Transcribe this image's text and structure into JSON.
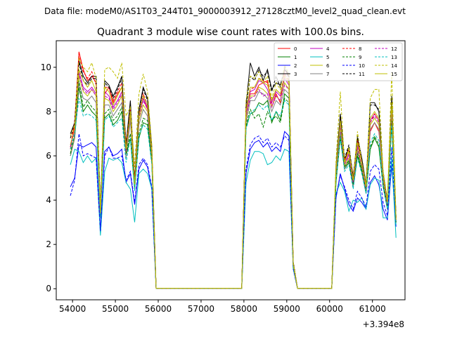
{
  "header": {
    "datafile": "Data file: modeM0/AS1T03_244T01_9000003912_27128cztM0_level2_quad_clean.evt"
  },
  "chart_data": {
    "type": "line",
    "title": "Quadrant 3 module wise count rates with 100.0s bins.",
    "xlabel": "",
    "ylabel": "",
    "x_offset_label": "+3.394e8",
    "xlim": [
      53620,
      61760
    ],
    "ylim": [
      -0.5,
      11.2
    ],
    "xticks": [
      54000,
      55000,
      56000,
      57000,
      58000,
      59000,
      60000,
      61000
    ],
    "yticks": [
      0,
      2,
      4,
      6,
      8,
      10
    ],
    "grid": false,
    "legend_position": "top-right",
    "x": [
      53950,
      54050,
      54150,
      54250,
      54350,
      54450,
      54550,
      54650,
      54750,
      54850,
      54950,
      55050,
      55150,
      55250,
      55350,
      55450,
      55550,
      55650,
      55750,
      55850,
      55950,
      56050,
      57950,
      58050,
      58150,
      58250,
      58350,
      58450,
      58550,
      58650,
      58750,
      58850,
      58950,
      59050,
      59150,
      59250,
      60050,
      60150,
      60250,
      60350,
      60450,
      60550,
      60650,
      60750,
      60850,
      60950,
      61050,
      61150,
      61250,
      61350,
      61450,
      61550
    ],
    "series": [
      {
        "name": "0",
        "color": "#ff0000",
        "dash": false,
        "values": [
          6.3,
          7.4,
          10.7,
          9.9,
          9.4,
          9.6,
          9.3,
          3.6,
          8.8,
          9.1,
          8.4,
          8.8,
          9.1,
          6.6,
          7.9,
          4.9,
          7.8,
          8.6,
          8.1,
          6.2,
          0.02,
          0.02,
          0.02,
          8.2,
          8.8,
          8.8,
          9.2,
          9.3,
          9.4,
          8.2,
          8.8,
          8.4,
          9.9,
          9.6,
          1.2,
          0.02,
          0.02,
          5.3,
          7.6,
          5.8,
          6.3,
          5.1,
          6.7,
          5.8,
          4.6,
          7.1,
          7.5,
          7.1,
          5.1,
          3.9,
          8.3,
          3.2
        ]
      },
      {
        "name": "1",
        "color": "#008000",
        "dash": false,
        "values": [
          6.0,
          6.8,
          9.1,
          8.0,
          8.3,
          8.0,
          7.8,
          3.3,
          7.7,
          7.9,
          7.4,
          7.6,
          8.0,
          6.0,
          6.8,
          4.5,
          6.8,
          7.5,
          7.4,
          5.7,
          0.02,
          0.02,
          0.02,
          7.3,
          7.9,
          8.0,
          8.4,
          8.3,
          8.5,
          7.5,
          8.0,
          7.6,
          8.8,
          8.6,
          1.1,
          0.02,
          0.02,
          4.8,
          6.8,
          5.4,
          5.7,
          4.6,
          6.0,
          5.3,
          4.3,
          6.3,
          6.8,
          6.4,
          4.6,
          3.6,
          7.5,
          3.0
        ]
      },
      {
        "name": "2",
        "color": "#0000ff",
        "dash": false,
        "values": [
          4.6,
          5.0,
          6.5,
          6.4,
          6.5,
          6.6,
          6.4,
          2.6,
          6.2,
          6.4,
          6.0,
          6.1,
          6.3,
          4.8,
          5.2,
          3.8,
          5.4,
          5.8,
          5.5,
          4.5,
          0.02,
          0.02,
          0.02,
          5.2,
          6.3,
          6.6,
          6.7,
          6.4,
          6.6,
          6.2,
          6.4,
          6.2,
          7.1,
          6.9,
          0.9,
          0.02,
          0.02,
          4.1,
          5.2,
          4.5,
          3.8,
          3.5,
          4.1,
          3.9,
          3.6,
          4.8,
          5.1,
          4.7,
          3.6,
          3.1,
          5.6,
          2.8
        ]
      },
      {
        "name": "3",
        "color": "#000000",
        "dash": false,
        "values": [
          7.0,
          7.5,
          10.3,
          9.6,
          9.3,
          9.6,
          9.6,
          3.6,
          9.4,
          9.2,
          8.7,
          9.1,
          9.6,
          6.5,
          8.5,
          4.9,
          8.1,
          9.1,
          8.6,
          6.4,
          0.02,
          0.02,
          0.02,
          8.3,
          10.2,
          9.6,
          10.0,
          9.4,
          9.9,
          9.0,
          9.3,
          9.2,
          9.9,
          9.7,
          1.2,
          0.02,
          0.02,
          5.5,
          7.9,
          5.8,
          6.4,
          5.0,
          6.8,
          5.9,
          4.7,
          8.4,
          8.4,
          8.0,
          5.2,
          4.0,
          8.6,
          3.2
        ]
      },
      {
        "name": "4",
        "color": "#bf00bf",
        "dash": false,
        "values": [
          6.5,
          7.1,
          9.8,
          9.1,
          8.9,
          9.1,
          8.8,
          3.4,
          8.9,
          8.7,
          8.2,
          8.5,
          8.9,
          6.2,
          8.0,
          4.7,
          7.8,
          8.6,
          8.2,
          6.1,
          0.02,
          0.02,
          0.02,
          7.9,
          8.9,
          9.0,
          9.4,
          9.3,
          9.0,
          8.4,
          8.9,
          8.7,
          9.5,
          9.2,
          1.1,
          0.02,
          0.02,
          5.3,
          7.5,
          5.6,
          6.1,
          4.8,
          6.5,
          5.7,
          4.5,
          7.6,
          7.9,
          7.6,
          5.0,
          3.8,
          8.2,
          3.1
        ]
      },
      {
        "name": "5",
        "color": "#00bfbf",
        "dash": false,
        "values": [
          5.6,
          6.3,
          6.2,
          5.7,
          6.0,
          5.7,
          5.9,
          2.4,
          5.3,
          5.9,
          5.8,
          5.9,
          5.7,
          4.8,
          4.5,
          3.0,
          5.2,
          5.4,
          5.2,
          4.5,
          0.02,
          0.02,
          0.02,
          4.8,
          5.8,
          6.2,
          6.2,
          6.1,
          5.6,
          5.7,
          6.0,
          5.8,
          6.3,
          6.2,
          0.9,
          0.02,
          0.02,
          4.3,
          4.8,
          4.4,
          3.5,
          4.0,
          3.9,
          4.1,
          3.6,
          4.7,
          5.0,
          4.9,
          3.2,
          3.2,
          5.9,
          2.3
        ]
      },
      {
        "name": "6",
        "color": "#bfbf00",
        "dash": false,
        "values": [
          6.1,
          6.9,
          9.6,
          8.9,
          8.7,
          9.0,
          8.7,
          3.3,
          8.6,
          8.5,
          8.0,
          8.3,
          8.7,
          6.1,
          7.8,
          4.6,
          7.6,
          8.3,
          8.0,
          6.0,
          0.02,
          0.02,
          0.02,
          7.7,
          8.7,
          8.7,
          9.1,
          9.0,
          8.8,
          8.2,
          8.7,
          8.5,
          9.3,
          9.0,
          1.1,
          0.02,
          0.02,
          5.2,
          7.3,
          5.5,
          5.9,
          4.7,
          6.3,
          5.5,
          4.4,
          7.4,
          7.7,
          7.4,
          4.9,
          3.7,
          8.0,
          3.1
        ]
      },
      {
        "name": "7",
        "color": "#808080",
        "dash": false,
        "values": [
          6.0,
          6.8,
          9.3,
          8.6,
          8.5,
          8.7,
          8.4,
          3.2,
          8.3,
          8.3,
          7.8,
          8.1,
          8.4,
          5.9,
          7.6,
          4.5,
          7.4,
          8.1,
          7.8,
          5.8,
          0.02,
          0.02,
          0.02,
          7.5,
          8.5,
          8.5,
          8.9,
          8.8,
          8.6,
          8.0,
          8.5,
          8.3,
          9.0,
          8.8,
          1.0,
          0.02,
          0.02,
          5.1,
          7.1,
          5.4,
          5.8,
          4.6,
          6.2,
          5.4,
          4.3,
          7.2,
          7.5,
          7.2,
          4.8,
          3.7,
          7.8,
          3.0
        ]
      },
      {
        "name": "8",
        "color": "#ff0000",
        "dash": true,
        "values": [
          6.4,
          7.6,
          10.5,
          9.8,
          9.5,
          9.8,
          9.2,
          3.5,
          9.1,
          9.1,
          8.5,
          8.9,
          9.3,
          6.5,
          8.1,
          4.9,
          7.9,
          8.8,
          8.3,
          6.2,
          0.02,
          0.02,
          0.02,
          8.1,
          9.0,
          9.1,
          9.5,
          9.4,
          9.3,
          8.5,
          9.0,
          8.8,
          9.7,
          9.4,
          1.2,
          0.02,
          0.02,
          5.4,
          7.7,
          5.8,
          6.3,
          5.0,
          6.7,
          5.8,
          4.6,
          7.5,
          7.9,
          7.6,
          5.1,
          3.9,
          8.4,
          3.2
        ]
      },
      {
        "name": "9",
        "color": "#008000",
        "dash": true,
        "values": [
          6.1,
          7.0,
          9.4,
          8.2,
          8.5,
          8.2,
          8.0,
          3.3,
          7.9,
          8.1,
          7.6,
          7.8,
          8.2,
          6.1,
          7.0,
          4.6,
          7.0,
          7.7,
          7.6,
          5.8,
          0.02,
          0.02,
          0.02,
          7.4,
          8.1,
          7.7,
          7.9,
          7.3,
          8.0,
          7.6,
          7.8,
          7.5,
          8.6,
          8.4,
          1.1,
          0.02,
          0.02,
          4.9,
          6.9,
          5.5,
          5.8,
          4.7,
          6.1,
          5.4,
          4.4,
          6.4,
          6.9,
          6.5,
          4.7,
          3.7,
          7.6,
          3.0
        ]
      },
      {
        "name": "10",
        "color": "#0000ff",
        "dash": true,
        "values": [
          4.2,
          4.9,
          7.0,
          6.0,
          6.1,
          6.0,
          5.9,
          2.6,
          6.0,
          6.4,
          5.9,
          5.9,
          6.0,
          4.9,
          5.3,
          3.9,
          5.6,
          5.9,
          5.6,
          4.6,
          0.02,
          0.02,
          0.02,
          5.4,
          6.5,
          6.8,
          6.9,
          6.6,
          6.8,
          6.4,
          6.6,
          6.4,
          6.9,
          6.7,
          0.9,
          0.02,
          0.02,
          4.2,
          5.1,
          4.6,
          4.0,
          3.6,
          4.4,
          4.1,
          3.7,
          5.3,
          5.6,
          5.4,
          3.9,
          3.3,
          6.4,
          2.8
        ]
      },
      {
        "name": "11",
        "color": "#000000",
        "dash": true,
        "values": [
          6.8,
          7.5,
          10.2,
          9.4,
          9.2,
          9.5,
          9.5,
          3.6,
          9.3,
          9.1,
          8.6,
          9.0,
          9.5,
          6.4,
          8.4,
          4.8,
          8.0,
          9.0,
          8.5,
          6.3,
          0.02,
          0.02,
          0.02,
          8.2,
          9.6,
          9.4,
          9.9,
          9.6,
          9.8,
          8.9,
          9.6,
          9.1,
          10.0,
          9.5,
          1.2,
          0.02,
          0.02,
          5.5,
          7.8,
          5.9,
          6.5,
          5.0,
          6.9,
          5.9,
          4.7,
          8.3,
          8.3,
          8.1,
          5.3,
          4.0,
          8.7,
          3.2
        ]
      },
      {
        "name": "12",
        "color": "#bf00bf",
        "dash": true,
        "values": [
          6.4,
          7.2,
          9.7,
          9.0,
          8.8,
          9.0,
          8.7,
          3.4,
          8.7,
          8.6,
          8.1,
          8.4,
          8.8,
          6.2,
          7.9,
          4.7,
          7.7,
          8.5,
          8.1,
          6.0,
          0.02,
          0.02,
          0.02,
          7.8,
          8.6,
          8.7,
          9.0,
          8.7,
          8.8,
          8.2,
          8.7,
          8.5,
          9.2,
          9.0,
          1.1,
          0.02,
          0.02,
          5.3,
          7.4,
          5.6,
          6.0,
          4.8,
          6.4,
          5.6,
          4.5,
          7.5,
          7.8,
          7.5,
          5.0,
          3.8,
          8.1,
          3.1
        ]
      },
      {
        "name": "13",
        "color": "#00bfbf",
        "dash": true,
        "values": [
          6.3,
          7.0,
          8.6,
          7.8,
          7.9,
          7.8,
          7.6,
          3.2,
          7.6,
          7.8,
          7.3,
          7.5,
          7.7,
          5.7,
          6.8,
          4.4,
          6.9,
          7.4,
          7.2,
          5.6,
          0.02,
          0.02,
          0.02,
          7.2,
          7.9,
          8.1,
          8.3,
          8.1,
          8.3,
          7.6,
          8.0,
          7.8,
          8.5,
          8.3,
          1.0,
          0.02,
          0.02,
          4.9,
          6.8,
          5.3,
          5.6,
          4.5,
          5.9,
          5.2,
          4.3,
          6.6,
          7.0,
          6.7,
          4.6,
          3.6,
          7.4,
          2.9
        ]
      },
      {
        "name": "14",
        "color": "#bfbf00",
        "dash": true,
        "values": [
          6.9,
          7.4,
          10.4,
          10.0,
          9.8,
          10.2,
          9.5,
          3.6,
          9.9,
          10.0,
          9.8,
          9.5,
          10.2,
          7.8,
          8.2,
          5.5,
          8.8,
          9.7,
          8.9,
          6.5,
          0.02,
          0.02,
          0.02,
          8.5,
          9.6,
          9.5,
          9.8,
          9.3,
          9.6,
          8.6,
          9.3,
          9.0,
          10.1,
          9.7,
          1.2,
          0.02,
          0.02,
          5.8,
          8.9,
          5.6,
          6.4,
          4.9,
          7.1,
          5.7,
          4.7,
          8.6,
          9.0,
          9.0,
          5.3,
          4.0,
          9.8,
          3.2
        ]
      },
      {
        "name": "15",
        "color": "#bfbf00",
        "dash": false,
        "values": [
          6.5,
          7.2,
          9.9,
          9.4,
          9.1,
          9.4,
          8.9,
          3.4,
          9.1,
          8.9,
          8.3,
          8.7,
          9.1,
          6.3,
          8.0,
          4.7,
          7.8,
          8.7,
          8.3,
          6.1,
          0.02,
          0.02,
          0.02,
          8.0,
          9.1,
          9.1,
          9.5,
          9.3,
          9.2,
          8.5,
          9.0,
          8.8,
          9.6,
          9.3,
          1.1,
          0.02,
          0.02,
          5.4,
          7.6,
          5.7,
          6.2,
          4.9,
          6.6,
          5.7,
          4.6,
          7.7,
          8.0,
          7.7,
          5.1,
          3.9,
          8.4,
          3.1
        ]
      }
    ]
  }
}
